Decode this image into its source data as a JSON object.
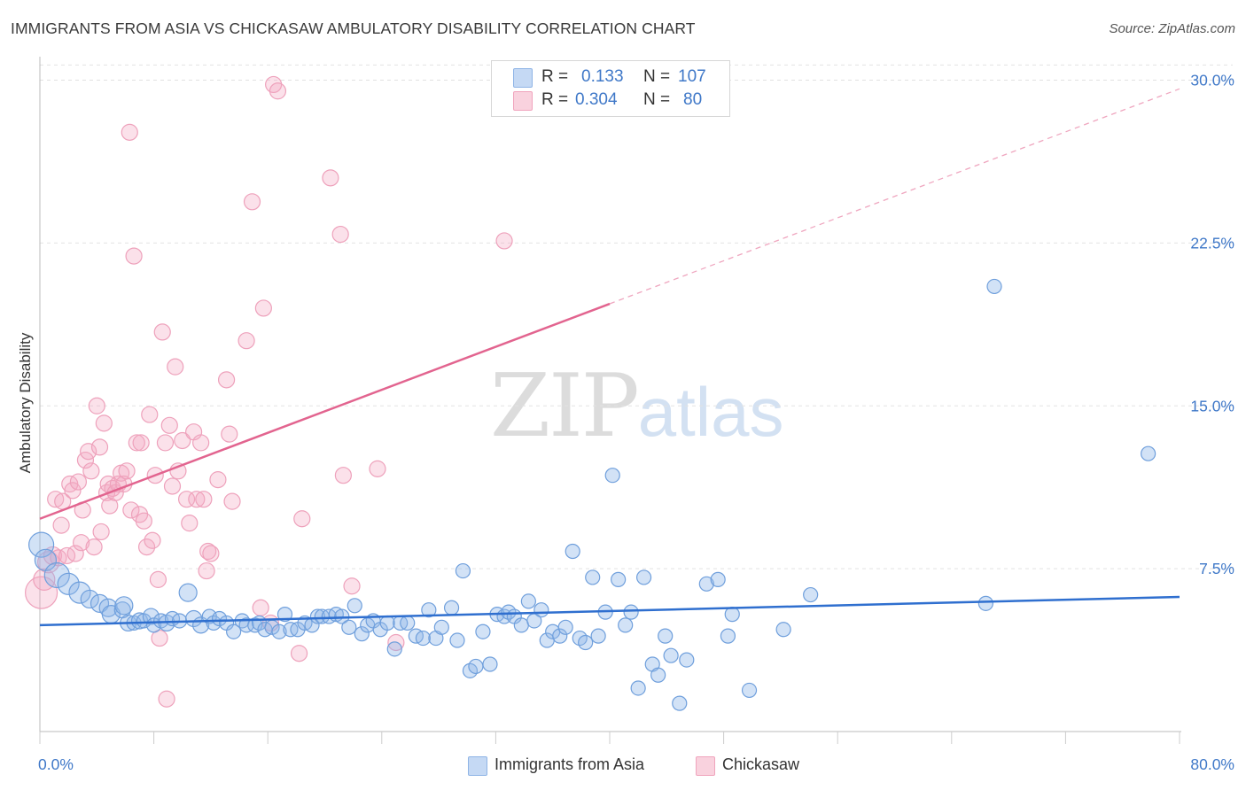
{
  "header": {
    "title": "IMMIGRANTS FROM ASIA VS CHICKASAW AMBULATORY DISABILITY CORRELATION CHART",
    "source": "Source: ZipAtlas.com"
  },
  "legend_top": {
    "rows": [
      {
        "r_label": "R =",
        "r_value": "0.133",
        "n_label": "N =",
        "n_value": "107",
        "color": "#a9c8ef"
      },
      {
        "r_label": "R =",
        "r_value": "0.304",
        "n_label": "N =",
        "n_value": "80",
        "color": "#f4b9cc"
      }
    ]
  },
  "legend_bottom": {
    "items": [
      {
        "label": "Immigrants from Asia",
        "color": "#a9c8ef"
      },
      {
        "label": "Chickasaw",
        "color": "#f4b9cc"
      }
    ]
  },
  "watermark": {
    "zip": "ZIP",
    "atlas": "atlas"
  },
  "chart_data": {
    "type": "scatter",
    "title": "IMMIGRANTS FROM ASIA VS CHICKASAW AMBULATORY DISABILITY CORRELATION CHART",
    "xlabel": "",
    "ylabel": "Ambulatory Disability",
    "xlim": [
      0,
      80
    ],
    "ylim": [
      0,
      31
    ],
    "x_tick_labels": [
      "0.0%",
      "80.0%"
    ],
    "y_ticks": [
      7.5,
      15.0,
      22.5,
      30.0
    ],
    "y_tick_labels": [
      "7.5%",
      "15.0%",
      "22.5%",
      "30.0%"
    ],
    "grid": "horizontal dashed",
    "legend_position": "top-center",
    "colors": {
      "asia": "#6fa3e3",
      "asia_line": "#2f6fcf",
      "chickasaw": "#f08db0",
      "chickasaw_line": "#e2648f"
    },
    "series": [
      {
        "name": "Immigrants from Asia",
        "r": 0.133,
        "n": 107,
        "trend": {
          "x": [
            0,
            80
          ],
          "y": [
            4.9,
            6.2
          ]
        },
        "points": [
          [
            0.1,
            8.6,
            14
          ],
          [
            0.4,
            7.9,
            12
          ],
          [
            1.2,
            7.2,
            14
          ],
          [
            2.0,
            6.8,
            12
          ],
          [
            2.8,
            6.4,
            12
          ],
          [
            3.5,
            6.1,
            10
          ],
          [
            4.2,
            5.9,
            10
          ],
          [
            4.8,
            5.7,
            10
          ],
          [
            5.0,
            5.4,
            10
          ],
          [
            5.8,
            5.6,
            9
          ],
          [
            5.9,
            5.8,
            10
          ],
          [
            6.2,
            5.0,
            9
          ],
          [
            6.6,
            5.0,
            8
          ],
          [
            7.0,
            5.1,
            9
          ],
          [
            7.3,
            5.1,
            8
          ],
          [
            7.8,
            5.3,
            9
          ],
          [
            8.0,
            4.9,
            8
          ],
          [
            8.5,
            5.1,
            8
          ],
          [
            8.9,
            5.0,
            9
          ],
          [
            9.3,
            5.2,
            8
          ],
          [
            9.8,
            5.1,
            8
          ],
          [
            10.4,
            6.4,
            10
          ],
          [
            10.8,
            5.2,
            9
          ],
          [
            11.3,
            4.9,
            9
          ],
          [
            11.9,
            5.3,
            8
          ],
          [
            12.2,
            5.0,
            8
          ],
          [
            12.6,
            5.2,
            8
          ],
          [
            13.1,
            5.0,
            8
          ],
          [
            13.6,
            4.6,
            8
          ],
          [
            14.2,
            5.1,
            8
          ],
          [
            14.5,
            4.9,
            8
          ],
          [
            15.1,
            4.9,
            8
          ],
          [
            15.4,
            5.0,
            8
          ],
          [
            15.8,
            4.7,
            8
          ],
          [
            16.3,
            4.8,
            8
          ],
          [
            16.8,
            4.6,
            8
          ],
          [
            17.2,
            5.4,
            8
          ],
          [
            17.6,
            4.7,
            8
          ],
          [
            18.1,
            4.7,
            8
          ],
          [
            18.6,
            5.0,
            8
          ],
          [
            19.1,
            4.9,
            8
          ],
          [
            19.5,
            5.3,
            8
          ],
          [
            19.8,
            5.3,
            8
          ],
          [
            20.3,
            5.3,
            8
          ],
          [
            20.8,
            5.4,
            8
          ],
          [
            21.2,
            5.3,
            8
          ],
          [
            21.7,
            4.8,
            8
          ],
          [
            22.1,
            5.8,
            8
          ],
          [
            22.6,
            4.5,
            8
          ],
          [
            23.0,
            4.9,
            8
          ],
          [
            23.4,
            5.1,
            8
          ],
          [
            23.9,
            4.7,
            8
          ],
          [
            24.4,
            5.0,
            8
          ],
          [
            24.9,
            3.8,
            8
          ],
          [
            25.3,
            5.0,
            8
          ],
          [
            25.8,
            5.0,
            8
          ],
          [
            26.4,
            4.4,
            8
          ],
          [
            26.9,
            4.3,
            8
          ],
          [
            27.3,
            5.6,
            8
          ],
          [
            27.8,
            4.3,
            8
          ],
          [
            28.2,
            4.8,
            8
          ],
          [
            28.9,
            5.7,
            8
          ],
          [
            29.3,
            4.2,
            8
          ],
          [
            29.7,
            7.4,
            8
          ],
          [
            30.2,
            2.8,
            8
          ],
          [
            30.6,
            3.0,
            8
          ],
          [
            31.1,
            4.6,
            8
          ],
          [
            31.6,
            3.1,
            8
          ],
          [
            32.1,
            5.4,
            8
          ],
          [
            32.6,
            5.3,
            8
          ],
          [
            32.9,
            5.5,
            8
          ],
          [
            33.3,
            5.3,
            8
          ],
          [
            33.8,
            4.9,
            8
          ],
          [
            34.3,
            6.0,
            8
          ],
          [
            34.7,
            5.1,
            8
          ],
          [
            35.2,
            5.6,
            8
          ],
          [
            35.6,
            4.2,
            8
          ],
          [
            36.0,
            4.6,
            8
          ],
          [
            36.5,
            4.4,
            8
          ],
          [
            36.9,
            4.8,
            8
          ],
          [
            37.4,
            8.3,
            8
          ],
          [
            37.9,
            4.3,
            8
          ],
          [
            38.3,
            4.1,
            8
          ],
          [
            38.8,
            7.1,
            8
          ],
          [
            39.2,
            4.4,
            8
          ],
          [
            39.7,
            5.5,
            8
          ],
          [
            40.2,
            11.8,
            8
          ],
          [
            40.6,
            7.0,
            8
          ],
          [
            41.1,
            4.9,
            8
          ],
          [
            41.5,
            5.5,
            8
          ],
          [
            42.0,
            2.0,
            8
          ],
          [
            42.4,
            7.1,
            8
          ],
          [
            43.0,
            3.1,
            8
          ],
          [
            43.4,
            2.6,
            8
          ],
          [
            43.9,
            4.4,
            8
          ],
          [
            44.3,
            3.5,
            8
          ],
          [
            44.9,
            1.3,
            8
          ],
          [
            45.4,
            3.3,
            8
          ],
          [
            46.8,
            6.8,
            8
          ],
          [
            47.6,
            7.0,
            8
          ],
          [
            48.3,
            4.4,
            8
          ],
          [
            48.6,
            5.4,
            8
          ],
          [
            49.8,
            1.9,
            8
          ],
          [
            52.2,
            4.7,
            8
          ],
          [
            54.1,
            6.3,
            8
          ],
          [
            66.4,
            5.9,
            8
          ],
          [
            67.0,
            20.5,
            8
          ],
          [
            77.8,
            12.8,
            8
          ]
        ]
      },
      {
        "name": "Chickasaw",
        "r": 0.304,
        "n": 80,
        "trend": {
          "x": [
            0,
            40
          ],
          "y": [
            9.8,
            19.7
          ]
        },
        "trend_extension": {
          "x": [
            40,
            80
          ],
          "y": [
            19.7,
            29.6
          ]
        },
        "points": [
          [
            0.1,
            6.4,
            18
          ],
          [
            0.3,
            7.0,
            12
          ],
          [
            0.6,
            7.8,
            12
          ],
          [
            0.9,
            8.1,
            10
          ],
          [
            1.1,
            10.7,
            9
          ],
          [
            1.3,
            8.0,
            9
          ],
          [
            1.5,
            9.5,
            9
          ],
          [
            1.6,
            10.6,
            9
          ],
          [
            1.9,
            8.1,
            9
          ],
          [
            2.1,
            11.4,
            9
          ],
          [
            2.3,
            11.1,
            9
          ],
          [
            2.5,
            8.2,
            9
          ],
          [
            2.7,
            11.5,
            9
          ],
          [
            2.9,
            8.7,
            9
          ],
          [
            3.0,
            10.2,
            9
          ],
          [
            3.2,
            12.5,
            9
          ],
          [
            3.4,
            12.9,
            9
          ],
          [
            3.6,
            12.0,
            9
          ],
          [
            3.8,
            8.5,
            9
          ],
          [
            4.0,
            15.0,
            9
          ],
          [
            4.2,
            13.1,
            9
          ],
          [
            4.3,
            9.2,
            9
          ],
          [
            4.5,
            14.2,
            9
          ],
          [
            4.7,
            11.0,
            9
          ],
          [
            4.8,
            11.4,
            9
          ],
          [
            4.9,
            10.4,
            9
          ],
          [
            5.1,
            11.2,
            9
          ],
          [
            5.3,
            11.0,
            9
          ],
          [
            5.5,
            11.4,
            9
          ],
          [
            5.7,
            11.9,
            9
          ],
          [
            5.9,
            11.4,
            9
          ],
          [
            6.1,
            12.0,
            9
          ],
          [
            6.3,
            27.6,
            9
          ],
          [
            6.4,
            10.2,
            9
          ],
          [
            6.6,
            21.9,
            9
          ],
          [
            6.8,
            13.3,
            9
          ],
          [
            7.0,
            10.0,
            9
          ],
          [
            7.1,
            13.3,
            9
          ],
          [
            7.3,
            9.7,
            9
          ],
          [
            7.5,
            8.5,
            9
          ],
          [
            7.7,
            14.6,
            9
          ],
          [
            7.9,
            8.8,
            9
          ],
          [
            8.1,
            11.8,
            9
          ],
          [
            8.3,
            7.0,
            9
          ],
          [
            8.4,
            4.3,
            9
          ],
          [
            8.6,
            18.4,
            9
          ],
          [
            8.8,
            13.3,
            9
          ],
          [
            8.9,
            1.5,
            9
          ],
          [
            9.1,
            14.1,
            9
          ],
          [
            9.3,
            11.3,
            9
          ],
          [
            9.5,
            16.8,
            9
          ],
          [
            9.7,
            12.0,
            9
          ],
          [
            10.0,
            13.4,
            9
          ],
          [
            10.3,
            10.7,
            9
          ],
          [
            10.5,
            9.6,
            9
          ],
          [
            10.8,
            13.8,
            9
          ],
          [
            11.0,
            10.7,
            9
          ],
          [
            11.3,
            13.3,
            9
          ],
          [
            11.5,
            10.7,
            9
          ],
          [
            11.7,
            7.4,
            9
          ],
          [
            11.8,
            8.3,
            9
          ],
          [
            12.0,
            8.2,
            9
          ],
          [
            12.5,
            11.6,
            9
          ],
          [
            13.1,
            16.2,
            9
          ],
          [
            13.3,
            13.7,
            9
          ],
          [
            13.5,
            10.6,
            9
          ],
          [
            14.5,
            18.0,
            9
          ],
          [
            14.9,
            24.4,
            9
          ],
          [
            15.5,
            5.7,
            9
          ],
          [
            15.7,
            19.5,
            9
          ],
          [
            16.2,
            5.0,
            9
          ],
          [
            16.4,
            29.8,
            9
          ],
          [
            16.7,
            29.5,
            9
          ],
          [
            18.2,
            3.6,
            9
          ],
          [
            18.4,
            9.8,
            9
          ],
          [
            20.4,
            25.5,
            9
          ],
          [
            21.1,
            22.9,
            9
          ],
          [
            21.3,
            11.8,
            9
          ],
          [
            21.9,
            6.7,
            9
          ],
          [
            23.7,
            12.1,
            9
          ],
          [
            25.0,
            4.1,
            9
          ],
          [
            32.6,
            22.6,
            9
          ]
        ]
      }
    ]
  }
}
